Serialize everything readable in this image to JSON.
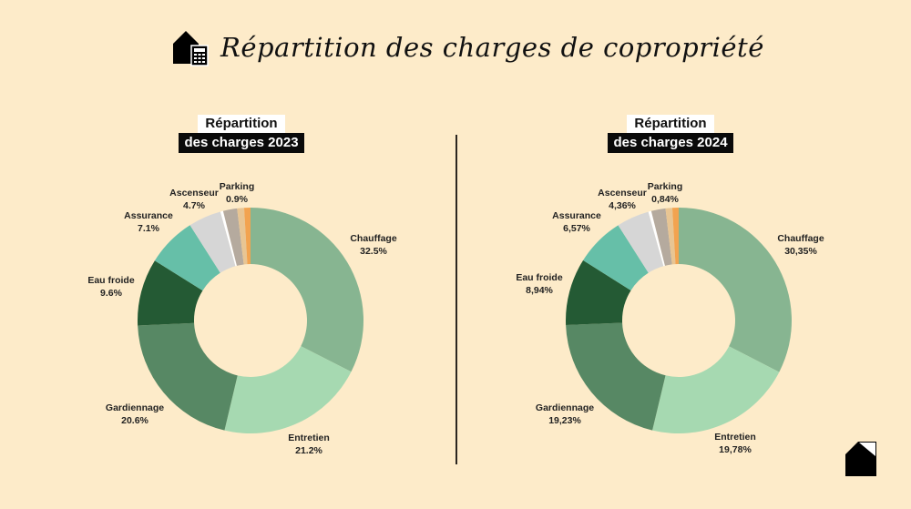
{
  "page": {
    "title": "Répartition des charges de copropriété",
    "background": "#fdebc9",
    "icons": {
      "header": "house-calculator-icon",
      "footer": "document-icon"
    }
  },
  "charts": [
    {
      "title_line1": "Répartition",
      "title_line2": "des charges 2023"
    },
    {
      "title_line1": "Répartition",
      "title_line2": "des charges 2024"
    }
  ],
  "chart_data": [
    {
      "type": "pie",
      "variant": "donut",
      "title": "Répartition des charges 2023",
      "categories": [
        "Chauffage",
        "Entretien",
        "Gardiennage",
        "Eau froide",
        "Assurance",
        "Ascenseur",
        "Parking"
      ],
      "values": [
        32.5,
        21.2,
        20.6,
        9.6,
        7.1,
        4.7,
        0.9
      ],
      "labels": [
        "32.5%",
        "21.2%",
        "20.6%",
        "9.6%",
        "7.1%",
        "4.7%",
        "0.9%"
      ],
      "colors": {
        "Chauffage": "#87b591",
        "Entretien": "#a6d9b1",
        "Gardiennage": "#578864",
        "Eau froide": "#245a34",
        "Assurance": "#66bfa8",
        "Ascenseur": "#d6d6d6",
        "Parking": "#f2a350"
      },
      "unlabeled_slices": [
        {
          "value": 0.4,
          "color": "#ffffff"
        },
        {
          "value": 2.0,
          "color": "#b5aa9e"
        },
        {
          "value": 1.0,
          "color": "#e8c593"
        }
      ],
      "start_angle": "12 o'clock, clockwise"
    },
    {
      "type": "pie",
      "variant": "donut",
      "title": "Répartition des charges 2024",
      "categories": [
        "Chauffage",
        "Entretien",
        "Gardiennage",
        "Eau froide",
        "Assurance",
        "Ascenseur",
        "Parking"
      ],
      "values": [
        30.35,
        19.78,
        19.23,
        8.94,
        6.57,
        4.36,
        0.84
      ],
      "labels": [
        "30,35%",
        "19,78%",
        "19,23%",
        "8,94%",
        "6,57%",
        "4,36%",
        "0,84%"
      ],
      "colors": {
        "Chauffage": "#87b591",
        "Entretien": "#a6d9b1",
        "Gardiennage": "#578864",
        "Eau froide": "#245a34",
        "Assurance": "#66bfa8",
        "Ascenseur": "#d6d6d6",
        "Parking": "#f2a350"
      },
      "unlabeled_slices": [
        {
          "value": 0.4,
          "color": "#ffffff"
        },
        {
          "value": 1.9,
          "color": "#b5aa9e"
        },
        {
          "value": 0.9,
          "color": "#e8c593"
        }
      ],
      "start_angle": "12 o'clock, clockwise"
    }
  ]
}
